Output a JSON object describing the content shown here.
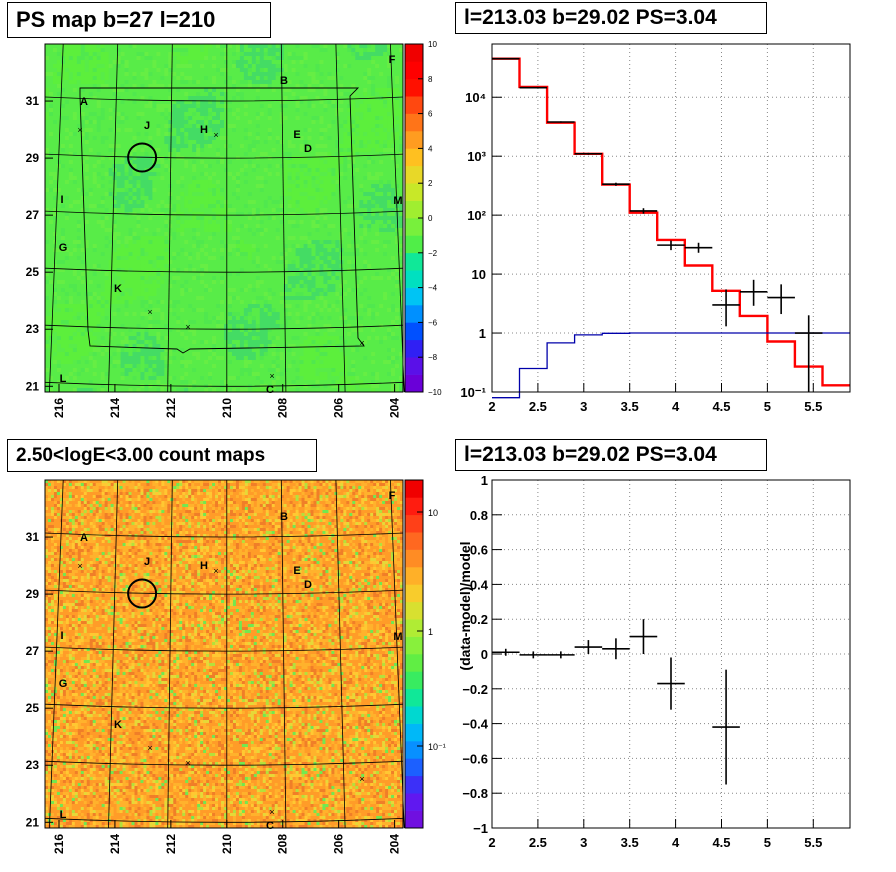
{
  "panels": {
    "ps_map": {
      "title": "PS map b=27 l=210",
      "x_ticks": [
        "216",
        "214",
        "212",
        "210",
        "208",
        "206",
        "204"
      ],
      "y_ticks": [
        "21",
        "23",
        "25",
        "27",
        "29",
        "31"
      ],
      "colorbar_ticks": [
        "10",
        "8",
        "6",
        "4",
        "2",
        "0",
        "−2",
        "−4",
        "−6",
        "−8",
        "−10"
      ],
      "source_labels": [
        "A",
        "B",
        "C",
        "D",
        "E",
        "F",
        "G",
        "H",
        "I",
        "J",
        "K",
        "L",
        "M"
      ]
    },
    "spectrum": {
      "title": "l=213.03 b=29.02 PS=3.04"
    },
    "count_map": {
      "title": "2.50<logE<3.00 count maps",
      "x_ticks": [
        "216",
        "214",
        "212",
        "210",
        "208",
        "206",
        "204"
      ],
      "y_ticks": [
        "21",
        "23",
        "25",
        "27",
        "29",
        "31"
      ],
      "colorbar_ticks": [
        "10",
        "1",
        "10⁻¹"
      ],
      "source_labels": [
        "A",
        "B",
        "C",
        "D",
        "E",
        "F",
        "G",
        "H",
        "I",
        "J",
        "K",
        "L",
        "M"
      ]
    },
    "residual": {
      "title": "l=213.03 b=29.02 PS=3.04"
    }
  },
  "chart_data": [
    {
      "type": "heatmap",
      "title": "PS map b=27 l=210",
      "xlabel": "",
      "ylabel": "",
      "xlim": [
        216.5,
        203.7
      ],
      "ylim": [
        20.8,
        33.0
      ],
      "x_tick_values": [
        216,
        214,
        212,
        210,
        208,
        206,
        204
      ],
      "y_tick_values": [
        21,
        23,
        25,
        27,
        29,
        31
      ],
      "z_range": [
        -10,
        10
      ],
      "colorbar_tick_values": [
        10,
        8,
        6,
        4,
        2,
        0,
        -2,
        -4,
        -6,
        -8,
        -10
      ],
      "dominant_value": 0.5,
      "point_source": {
        "l": 213.03,
        "b": 29.02
      }
    },
    {
      "type": "line",
      "title": "l=213.03 b=29.02 PS=3.04",
      "xlabel": "",
      "ylabel": "",
      "xlim": [
        2,
        5.9
      ],
      "ylim": [
        0.1,
        80000
      ],
      "yscale": "log",
      "x_tick_labels": [
        "2",
        "2.5",
        "3",
        "3.5",
        "4",
        "4.5",
        "5",
        "5.5"
      ],
      "y_tick_labels": [
        "10⁻¹",
        "1",
        "10",
        "10²",
        "10³",
        "10⁴"
      ],
      "grid": true,
      "series": [
        {
          "color": "#ff0000",
          "style": "step",
          "edges": [
            2.0,
            2.3,
            2.6,
            2.9,
            3.2,
            3.5,
            3.8,
            4.1,
            4.4,
            4.7,
            5.0,
            5.3,
            5.6,
            5.9
          ],
          "values": [
            45000,
            15000,
            3700,
            1100,
            330,
            110,
            38,
            14,
            5.2,
            1.95,
            0.72,
            0.27,
            0.13
          ]
        },
        {
          "color": "#0000aa",
          "style": "step",
          "edges": [
            2.0,
            2.3,
            2.6,
            2.9,
            3.2,
            3.5,
            3.8,
            4.1,
            4.4,
            4.7,
            5.0,
            5.3,
            5.6,
            5.9
          ],
          "values": [
            0.001,
            0.25,
            0.68,
            0.93,
            0.99,
            1.0,
            1.0,
            1.0,
            1.0,
            1.0,
            1.0,
            1.0,
            1.0
          ]
        },
        {
          "color": "#000000",
          "style": "errorbar",
          "points": [
            {
              "x": 2.15,
              "y": 45000,
              "xerr": 0.15,
              "ylo": 44000,
              "yhi": 46000
            },
            {
              "x": 2.45,
              "y": 14500,
              "xerr": 0.15,
              "ylo": 14200,
              "yhi": 14800
            },
            {
              "x": 2.75,
              "y": 3800,
              "xerr": 0.15,
              "ylo": 3700,
              "yhi": 3900
            },
            {
              "x": 3.05,
              "y": 1100,
              "xerr": 0.15,
              "ylo": 1060,
              "yhi": 1140
            },
            {
              "x": 3.35,
              "y": 335,
              "xerr": 0.15,
              "ylo": 315,
              "yhi": 355
            },
            {
              "x": 3.65,
              "y": 118,
              "xerr": 0.15,
              "ylo": 106,
              "yhi": 131
            },
            {
              "x": 3.95,
              "y": 31,
              "xerr": 0.15,
              "ylo": 25.5,
              "yhi": 37
            },
            {
              "x": 4.25,
              "y": 28,
              "xerr": 0.15,
              "ylo": 23,
              "yhi": 34
            },
            {
              "x": 4.55,
              "y": 3.0,
              "xerr": 0.15,
              "ylo": 1.3,
              "yhi": 5.5
            },
            {
              "x": 4.85,
              "y": 5.0,
              "xerr": 0.15,
              "ylo": 2.9,
              "yhi": 8.0
            },
            {
              "x": 5.15,
              "y": 4.0,
              "xerr": 0.15,
              "ylo": 2.1,
              "yhi": 6.7
            },
            {
              "x": 5.45,
              "y": 1.0,
              "xerr": 0.15,
              "ylo": 0.1,
              "yhi": 2.0
            }
          ]
        }
      ]
    },
    {
      "type": "heatmap",
      "title": "2.50<logE<3.00 count maps",
      "xlabel": "",
      "ylabel": "",
      "xlim": [
        216.5,
        203.7
      ],
      "ylim": [
        20.8,
        33.0
      ],
      "x_tick_values": [
        216,
        214,
        212,
        210,
        208,
        206,
        204
      ],
      "y_tick_values": [
        21,
        23,
        25,
        27,
        29,
        31
      ],
      "zscale": "log",
      "colorbar_tick_values": [
        10,
        1,
        0.1
      ],
      "point_source": {
        "l": 213.03,
        "b": 29.02
      }
    },
    {
      "type": "scatter",
      "title": "l=213.03 b=29.02 PS=3.04",
      "xlabel": "",
      "ylabel": "(data-model)/model",
      "xlim": [
        2,
        5.9
      ],
      "ylim": [
        -1,
        1
      ],
      "x_tick_labels": [
        "2",
        "2.5",
        "3",
        "3.5",
        "4",
        "4.5",
        "5",
        "5.5"
      ],
      "y_tick_labels": [
        "1",
        "0.8",
        "0.6",
        "0.4",
        "0.2",
        "0",
        "−0.2",
        "−0.4",
        "−0.6",
        "−0.8",
        "−1"
      ],
      "grid": true,
      "points": [
        {
          "x": 2.15,
          "y": 0.01,
          "xerr": 0.15,
          "yerr": 0.02
        },
        {
          "x": 2.45,
          "y": -0.005,
          "xerr": 0.15,
          "yerr": 0.02
        },
        {
          "x": 2.75,
          "y": -0.005,
          "xerr": 0.15,
          "yerr": 0.02
        },
        {
          "x": 3.05,
          "y": 0.04,
          "xerr": 0.15,
          "yerr": 0.04
        },
        {
          "x": 3.35,
          "y": 0.03,
          "xerr": 0.15,
          "yerr": 0.06
        },
        {
          "x": 3.65,
          "y": 0.1,
          "xerr": 0.15,
          "yerr": 0.1
        },
        {
          "x": 3.95,
          "y": -0.17,
          "xerr": 0.15,
          "yerr": 0.15
        },
        {
          "x": 4.55,
          "y": -0.42,
          "xerr": 0.15,
          "yerr": 0.33
        }
      ]
    }
  ]
}
